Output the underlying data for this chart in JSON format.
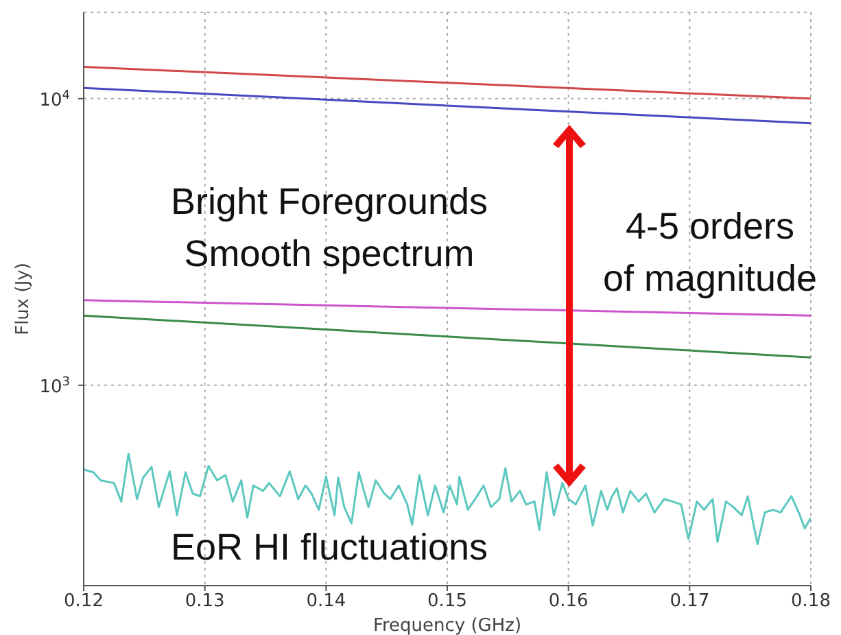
{
  "chart_data": {
    "type": "line",
    "xlabel": "Frequency (GHz)",
    "ylabel": "Flux (Jy)",
    "log": "y",
    "grid": true,
    "marker": "none",
    "line_style": "solid",
    "xlim": [
      0.12,
      0.18
    ],
    "xticks": [
      0.12,
      0.13,
      0.14,
      0.15,
      0.16,
      0.17,
      0.18
    ],
    "ylim": [
      200,
      20000
    ],
    "yticks": [
      {
        "value": 1000,
        "label": "10$^{3}$"
      },
      {
        "value": 10000,
        "label": "10$^{4}$"
      }
    ],
    "annotations": [
      "Bright Foregrounds\nSmooth spectrum",
      "4-5 orders\nof magnitude",
      "EoR HI fluctuations"
    ],
    "series": [
      {
        "color": "#d04848",
        "x": [
          0.12,
          0.18
        ],
        "values": [
          12900,
          10000
        ]
      },
      {
        "color": "#4848c0",
        "x": [
          0.12,
          0.18
        ],
        "values": [
          10900,
          8200
        ]
      },
      {
        "color": "#cc55cc",
        "x": [
          0.12,
          0.18
        ],
        "values": [
          1980,
          1750
        ]
      },
      {
        "color": "#3a8a4a",
        "x": [
          0.12,
          0.18
        ],
        "values": [
          1750,
          1250
        ]
      },
      {
        "color": "#5cc8c0",
        "x": [
          0.12,
          0.1208,
          0.1214,
          0.1225,
          0.1231,
          0.1237,
          0.1244,
          0.1249,
          0.1256,
          0.1262,
          0.1271,
          0.1277,
          0.1284,
          0.129,
          0.1296,
          0.1303,
          0.131,
          0.1317,
          0.1323,
          0.133,
          0.1335,
          0.134,
          0.1348,
          0.1353,
          0.1362,
          0.137,
          0.1377,
          0.1383,
          0.1388,
          0.1394,
          0.14,
          0.1407,
          0.141,
          0.1415,
          0.1421,
          0.1427,
          0.1435,
          0.1441,
          0.1448,
          0.1453,
          0.146,
          0.1467,
          0.1471,
          0.1477,
          0.1484,
          0.149,
          0.1497,
          0.1502,
          0.1508,
          0.151,
          0.1517,
          0.1523,
          0.153,
          0.1536,
          0.1543,
          0.1548,
          0.1553,
          0.156,
          0.1565,
          0.1572,
          0.1576,
          0.1582,
          0.1588,
          0.1595,
          0.16,
          0.1606,
          0.1614,
          0.162,
          0.1627,
          0.1632,
          0.1636,
          0.164,
          0.1645,
          0.1651,
          0.1658,
          0.1664,
          0.1671,
          0.1679,
          0.1686,
          0.1693,
          0.1699,
          0.1706,
          0.1712,
          0.1719,
          0.1723,
          0.173,
          0.1736,
          0.1743,
          0.1748,
          0.1756,
          0.1762,
          0.1769,
          0.1775,
          0.1784,
          0.179,
          0.1795,
          0.18
        ],
        "values": [
          508,
          497,
          466,
          456,
          393,
          577,
          401,
          476,
          519,
          376,
          501,
          352,
          497,
          419,
          410,
          523,
          466,
          486,
          393,
          466,
          345,
          447,
          428,
          456,
          410,
          501,
          401,
          447,
          419,
          368,
          480,
          352,
          476,
          376,
          330,
          497,
          376,
          466,
          419,
          401,
          447,
          384,
          326,
          486,
          352,
          447,
          360,
          447,
          384,
          480,
          368,
          401,
          447,
          376,
          401,
          514,
          393,
          428,
          384,
          393,
          313,
          497,
          352,
          456,
          401,
          384,
          447,
          324,
          428,
          368,
          410,
          437,
          360,
          428,
          393,
          419,
          360,
          401,
          393,
          384,
          291,
          393,
          368,
          401,
          284,
          393,
          376,
          352,
          410,
          279,
          360,
          368,
          360,
          410,
          360,
          317,
          345
        ]
      }
    ]
  }
}
